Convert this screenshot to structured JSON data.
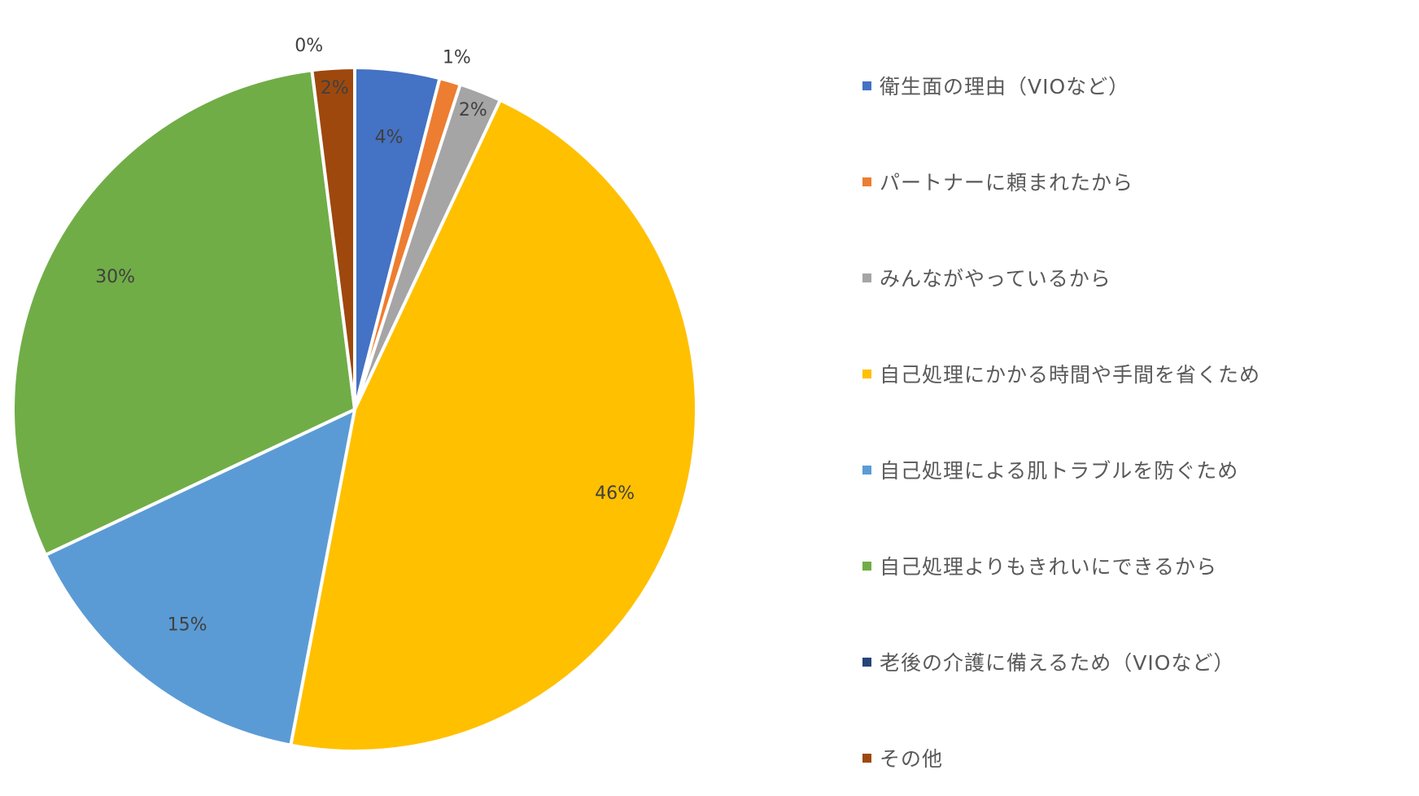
{
  "chart_data": {
    "type": "pie",
    "title": "",
    "legend_position": "right",
    "slices": [
      {
        "name": "衛生面の理由（VIOなど）",
        "value": 4,
        "label": "4%",
        "color": "#4472C4"
      },
      {
        "name": "パートナーに頼まれたから",
        "value": 1,
        "label": "1%",
        "color": "#ED7D31"
      },
      {
        "name": "みんながやっているから",
        "value": 2,
        "label": "2%",
        "color": "#A5A5A5"
      },
      {
        "name": "自己処理にかかる時間や手間を省くため",
        "value": 46,
        "label": "46%",
        "color": "#FFC000"
      },
      {
        "name": "自己処理による肌トラブルを防ぐため",
        "value": 15,
        "label": "15%",
        "color": "#5B9BD5"
      },
      {
        "name": "自己処理よりもきれいにできるから",
        "value": 30,
        "label": "30%",
        "color": "#70AD47"
      },
      {
        "name": "老後の介護に備えるため（VIOなど）",
        "value": 0,
        "label": "0%",
        "color": "#264478"
      },
      {
        "name": "その他",
        "value": 2,
        "label": "2%",
        "color": "#9E480E"
      }
    ]
  }
}
